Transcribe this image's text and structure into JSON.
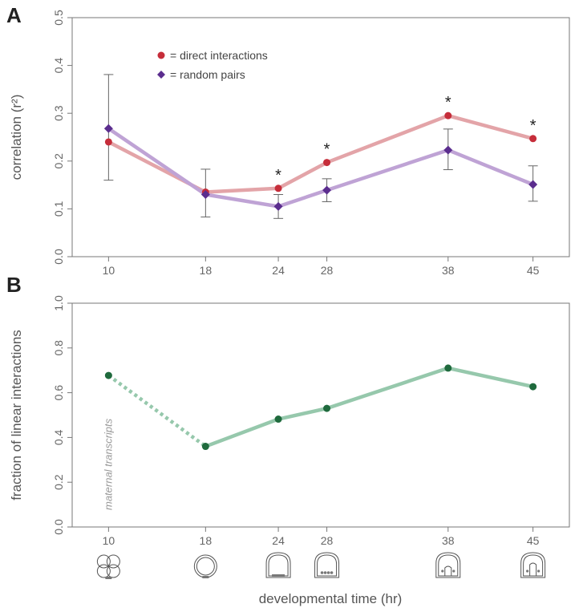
{
  "figure": {
    "xlabel": "developmental time (hr)",
    "embryo_icons": [
      "cleavage-embryo-icon",
      "blastula-embryo-icon",
      "hatched-blastula-icon",
      "mesenchyme-blastula-icon",
      "gastrula-embryo-icon",
      "late-gastrula-icon"
    ]
  },
  "chart_data": [
    {
      "panel": "A",
      "type": "line",
      "title": "",
      "xlabel": "",
      "ylabel": "correlation (r²)",
      "x": [
        10,
        18,
        24,
        28,
        38,
        45
      ],
      "xticks": [
        "10",
        "18",
        "24",
        "28",
        "38",
        "45"
      ],
      "xlim": [
        7,
        48
      ],
      "ylim": [
        0,
        0.5
      ],
      "yticks": [
        "0.0",
        "0.1",
        "0.2",
        "0.3",
        "0.4",
        "0.5"
      ],
      "legend_placement": "top-left",
      "series": [
        {
          "name": "= direct interactions",
          "color": "#c62d3a",
          "line_color": "#e3a4a8",
          "marker": "circle",
          "values": [
            0.24,
            0.135,
            0.143,
            0.197,
            0.295,
            0.247
          ]
        },
        {
          "name": "= random pairs",
          "color": "#5b2d8e",
          "line_color": "#bfa3d5",
          "marker": "diamond",
          "values": [
            0.268,
            0.13,
            0.105,
            0.139,
            0.223,
            0.151
          ],
          "error_low": [
            0.16,
            0.083,
            0.08,
            0.115,
            0.182,
            0.116
          ],
          "error_high": [
            0.381,
            0.183,
            0.13,
            0.163,
            0.267,
            0.19
          ]
        }
      ],
      "significance_marker": "*",
      "significant_x": [
        24,
        28,
        38,
        45
      ]
    },
    {
      "panel": "B",
      "type": "line",
      "title": "",
      "xlabel": "developmental time (hr)",
      "ylabel": "fraction of linear interactions",
      "x": [
        10,
        18,
        24,
        28,
        38,
        45
      ],
      "xticks": [
        "10",
        "18",
        "24",
        "28",
        "38",
        "45"
      ],
      "xlim": [
        7,
        48
      ],
      "ylim": [
        0,
        1.0
      ],
      "yticks": [
        "0.0",
        "0.2",
        "0.4",
        "0.6",
        "0.8",
        "1.0"
      ],
      "series": [
        {
          "color": "#1f6a3d",
          "line_color": "#96c8ac",
          "marker": "circle",
          "values": [
            0.677,
            0.36,
            0.482,
            0.53,
            0.71,
            0.627
          ],
          "dashed_segments": [
            [
              10,
              18
            ]
          ]
        }
      ],
      "annotation": "maternal transcripts"
    }
  ]
}
